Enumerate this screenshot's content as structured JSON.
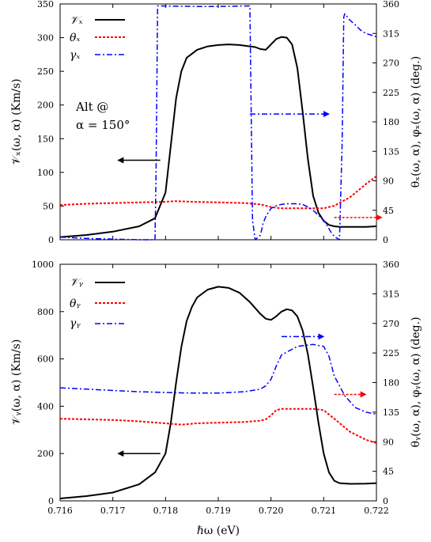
{
  "xlabel": "ℏω (eV)",
  "chart_data": [
    {
      "type": "line",
      "xlim": [
        0.716,
        0.722
      ],
      "ylim_left": [
        0,
        350
      ],
      "ylim_right": [
        0,
        360
      ],
      "x_ticks": [
        "0.716",
        "0.717",
        "0.718",
        "0.719",
        "0.720",
        "0.721",
        "0.722"
      ],
      "left_ticks": [
        "0",
        "50",
        "100",
        "150",
        "200",
        "250",
        "300",
        "350"
      ],
      "right_ticks": [
        "0",
        "45",
        "90",
        "135",
        "180",
        "225",
        "270",
        "315",
        "360"
      ],
      "left_label": "𝒱ₓ(ω, α) (Km/s)",
      "right_label": "θₓ(ω, α),  φₓ(ω, α) (deg.)",
      "annotation_line1": "Alt @",
      "annotation_line2": "α = 150°",
      "legend": [
        "𝒱ₓ",
        "θₓ",
        "γₓ"
      ],
      "series": [
        {
          "name": "𝒱ₓ",
          "axis": "left",
          "color": "#000000",
          "dash": "solid",
          "x": [
            0.716,
            0.7165,
            0.717,
            0.7175,
            0.7178,
            0.718,
            0.7181,
            0.7182,
            0.7183,
            0.7184,
            0.7186,
            0.7188,
            0.719,
            0.7192,
            0.7194,
            0.7196,
            0.7197,
            0.7198,
            0.7199,
            0.72,
            0.7201,
            0.7202,
            0.7203,
            0.7204,
            0.7205,
            0.7206,
            0.7207,
            0.7208,
            0.7209,
            0.721,
            0.7211,
            0.7212,
            0.7213,
            0.7215,
            0.7218,
            0.722
          ],
          "y": [
            4,
            7,
            12,
            20,
            32,
            70,
            140,
            210,
            250,
            270,
            282,
            287,
            289,
            290,
            289,
            287,
            286,
            283,
            282,
            290,
            298,
            301,
            300,
            290,
            255,
            190,
            120,
            65,
            40,
            28,
            22,
            20,
            19,
            19,
            19,
            20
          ]
        },
        {
          "name": "θₓ",
          "axis": "right",
          "color": "#ff0000",
          "dash": "dotted",
          "x": [
            0.716,
            0.7165,
            0.717,
            0.7175,
            0.718,
            0.7182,
            0.7185,
            0.719,
            0.7195,
            0.7198,
            0.72,
            0.7202,
            0.7205,
            0.7208,
            0.721,
            0.7212,
            0.7215,
            0.7218,
            0.722
          ],
          "y": [
            53,
            55,
            56,
            57,
            58,
            59,
            58,
            57,
            56,
            54,
            50,
            48,
            48,
            48,
            48,
            52,
            65,
            85,
            97
          ]
        },
        {
          "name": "γₓ",
          "axis": "right",
          "color": "#0000ff",
          "dash": "dashdot",
          "x": [
            0.716,
            0.7165,
            0.717,
            0.7175,
            0.7178,
            0.71782,
            0.71785,
            0.7188,
            0.7196,
            0.71965,
            0.7197,
            0.7198,
            0.71985,
            0.7199,
            0.72,
            0.7201,
            0.7202,
            0.7203,
            0.7204,
            0.7205,
            0.7206,
            0.7207,
            0.7208,
            0.721,
            0.72115,
            0.7212,
            0.7213,
            0.72135,
            0.72138,
            0.7214,
            0.7215,
            0.7216,
            0.7217,
            0.7218,
            0.722
          ],
          "y": [
            4,
            2,
            1,
            0,
            0,
            100,
            357,
            356,
            357,
            30,
            0,
            7,
            25,
            35,
            48,
            52,
            54,
            55,
            55,
            55,
            54,
            50,
            45,
            30,
            10,
            5,
            0,
            150,
            340,
            345,
            335,
            328,
            320,
            315,
            310
          ]
        }
      ],
      "arrows": [
        {
          "axis": "left",
          "from": [
            0.7179,
            118
          ],
          "to": [
            0.7171,
            118
          ],
          "color": "#000000",
          "dash": "solid"
        },
        {
          "axis": "right",
          "from": [
            0.7196,
            192
          ],
          "to": [
            0.7211,
            192
          ],
          "color": "#0000ff",
          "dash": "dashdot"
        },
        {
          "axis": "right",
          "from": [
            0.7212,
            34
          ],
          "to": [
            0.7221,
            34
          ],
          "color": "#ff0000",
          "dash": "dotted"
        }
      ]
    },
    {
      "type": "line",
      "xlim": [
        0.716,
        0.722
      ],
      "ylim_left": [
        0,
        1000
      ],
      "ylim_right": [
        0,
        360
      ],
      "x_ticks": [
        "0.716",
        "0.717",
        "0.718",
        "0.719",
        "0.720",
        "0.721",
        "0.722"
      ],
      "left_ticks": [
        "0",
        "200",
        "400",
        "600",
        "800",
        "1000"
      ],
      "right_ticks": [
        "0",
        "45",
        "90",
        "135",
        "180",
        "225",
        "270",
        "315",
        "360"
      ],
      "left_label": "𝒱ᵧ(ω, α) (Km/s)",
      "right_label": "θᵧ(ω, α),  φᵧ(ω, α) (deg.)",
      "legend": [
        "𝒱ᵧ",
        "θᵧ",
        "γᵧ"
      ],
      "series": [
        {
          "name": "𝒱ᵧ",
          "axis": "left",
          "color": "#000000",
          "dash": "solid",
          "x": [
            0.716,
            0.7165,
            0.717,
            0.7175,
            0.7178,
            0.718,
            0.7181,
            0.7182,
            0.7183,
            0.7184,
            0.7185,
            0.7186,
            0.7188,
            0.719,
            0.7192,
            0.7194,
            0.7196,
            0.7198,
            0.7199,
            0.72,
            0.7201,
            0.7202,
            0.7203,
            0.7204,
            0.7205,
            0.7206,
            0.7207,
            0.7208,
            0.7209,
            0.721,
            0.7211,
            0.7212,
            0.7213,
            0.7215,
            0.7218,
            0.722
          ],
          "y": [
            10,
            20,
            35,
            70,
            120,
            200,
            330,
            500,
            650,
            760,
            820,
            860,
            893,
            905,
            900,
            880,
            840,
            790,
            770,
            765,
            780,
            800,
            810,
            805,
            780,
            720,
            620,
            480,
            330,
            200,
            120,
            85,
            75,
            72,
            73,
            75
          ]
        },
        {
          "name": "θᵧ",
          "axis": "right",
          "color": "#ff0000",
          "dash": "dotted",
          "x": [
            0.716,
            0.7165,
            0.717,
            0.7175,
            0.718,
            0.7183,
            0.7186,
            0.719,
            0.7195,
            0.7198,
            0.7199,
            0.72,
            0.7201,
            0.7202,
            0.7205,
            0.7208,
            0.721,
            0.7212,
            0.7215,
            0.7218,
            0.722
          ],
          "y": [
            125,
            124,
            123,
            121,
            118,
            116,
            118,
            119,
            120,
            122,
            124,
            130,
            138,
            140,
            140,
            140,
            138,
            125,
            105,
            93,
            88
          ]
        },
        {
          "name": "γᵧ",
          "axis": "right",
          "color": "#0000ff",
          "dash": "dashdot",
          "x": [
            0.716,
            0.7165,
            0.717,
            0.7175,
            0.718,
            0.7185,
            0.719,
            0.7195,
            0.7198,
            0.7199,
            0.72,
            0.7201,
            0.7202,
            0.7205,
            0.7208,
            0.721,
            0.7211,
            0.7212,
            0.7214,
            0.7216,
            0.7218,
            0.722
          ],
          "y": [
            172,
            170,
            168,
            166,
            165,
            164,
            164,
            166,
            170,
            175,
            185,
            205,
            222,
            235,
            238,
            235,
            220,
            190,
            160,
            142,
            135,
            132
          ]
        }
      ],
      "arrows": [
        {
          "axis": "left",
          "from": [
            0.7179,
            200
          ],
          "to": [
            0.7171,
            200
          ],
          "color": "#000000",
          "dash": "solid"
        },
        {
          "axis": "right",
          "from": [
            0.7202,
            250
          ],
          "to": [
            0.721,
            250
          ],
          "color": "#0000ff",
          "dash": "dashdot"
        },
        {
          "axis": "right",
          "from": [
            0.7212,
            162
          ],
          "to": [
            0.7218,
            162
          ],
          "color": "#ff0000",
          "dash": "dotted"
        }
      ]
    }
  ]
}
